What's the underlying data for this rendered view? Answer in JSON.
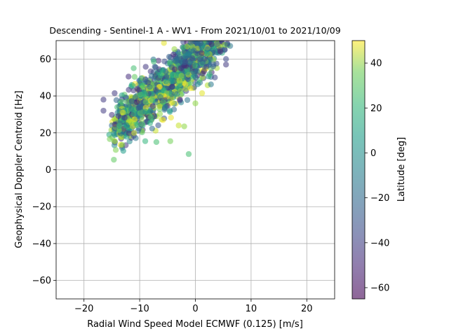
{
  "chart_data": {
    "type": "scatter",
    "title": "Descending - Sentinel-1 A - WV1 - From 2021/10/01 to 2021/10/09",
    "xlabel": "Radial Wind Speed Model ECMWF (0.125) [m/s]",
    "ylabel": "Geophysical Doppler Centroid [Hz]",
    "xlim": [
      -25,
      25
    ],
    "ylim": [
      -70,
      70
    ],
    "xticks": [
      -20,
      -10,
      0,
      10,
      20
    ],
    "yticks": [
      -60,
      -40,
      -20,
      0,
      20,
      40,
      60
    ],
    "grid": true,
    "colorbar": {
      "label": "Latitude [deg]",
      "range": [
        -65,
        50
      ],
      "ticks": [
        -60,
        -40,
        -20,
        0,
        20,
        40
      ],
      "colormap": "viridis",
      "alpha": 0.55
    },
    "marker_alpha": 0.55,
    "outlier_points": [
      {
        "x": -16.5,
        "y": 38,
        "lat": -45
      },
      {
        "x": -16.5,
        "y": 32,
        "lat": -45
      },
      {
        "x": -14.5,
        "y": 41.5,
        "lat": -45
      },
      {
        "x": -12,
        "y": 50.5,
        "lat": -50
      },
      {
        "x": -11,
        "y": 20,
        "lat": 40
      },
      {
        "x": -9,
        "y": 15.5,
        "lat": 10
      },
      {
        "x": -7,
        "y": 15,
        "lat": 15
      },
      {
        "x": -4.5,
        "y": 15.5,
        "lat": 25
      },
      {
        "x": -1.2,
        "y": 8.5,
        "lat": 15
      },
      {
        "x": -2,
        "y": 23.5,
        "lat": 30
      },
      {
        "x": -3,
        "y": 24,
        "lat": 40
      },
      {
        "x": 0,
        "y": 36,
        "lat": 30
      },
      {
        "x": 1.2,
        "y": 41.5,
        "lat": 45
      },
      {
        "x": 5.5,
        "y": 57,
        "lat": -45
      },
      {
        "x": 5.5,
        "y": 60,
        "lat": -40
      },
      {
        "x": 3.5,
        "y": 50,
        "lat": -40
      },
      {
        "x": 4.5,
        "y": 64,
        "lat": -50
      },
      {
        "x": 3.2,
        "y": 56,
        "lat": -30
      },
      {
        "x": -13,
        "y": 31,
        "lat": 45
      }
    ],
    "cluster": {
      "count": 1400,
      "x_range": [
        -14,
        5
      ],
      "y_center_at_x0": 60,
      "slope": 2.6,
      "y_spread": 7,
      "lat_range": [
        -55,
        50
      ]
    }
  }
}
